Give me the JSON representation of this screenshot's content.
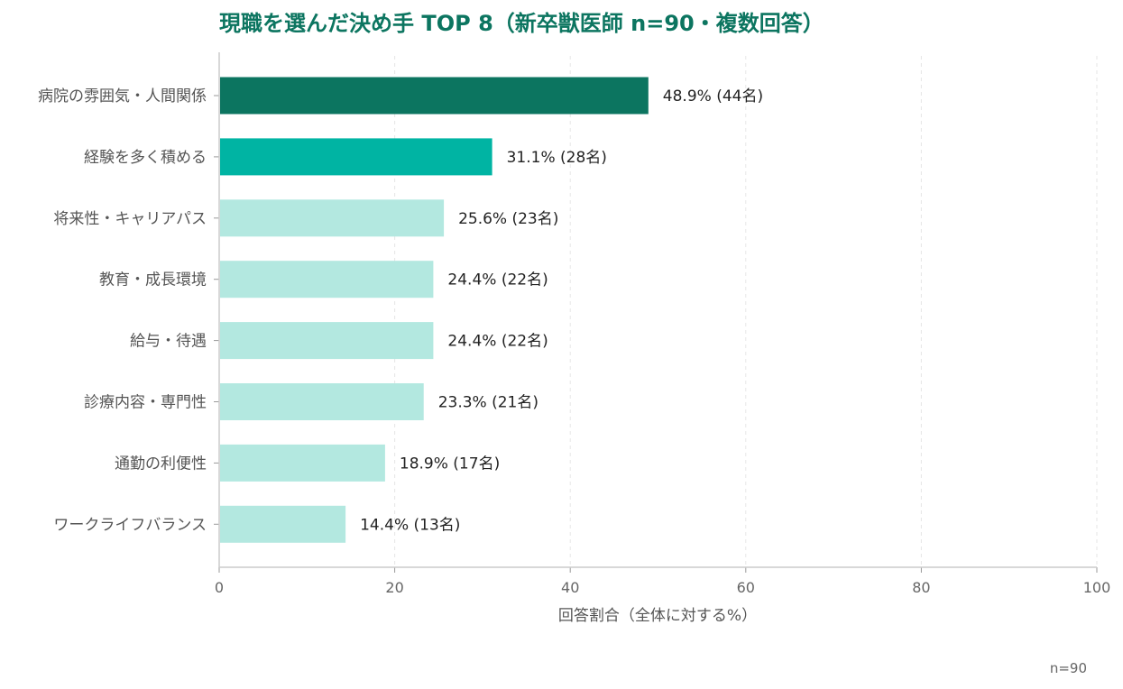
{
  "chart_data": {
    "type": "bar",
    "orientation": "horizontal",
    "title": "現職を選んだ決め手 TOP 8（新卒獣医師 n=90・複数回答）",
    "xlabel": "回答割合（全体に対する%）",
    "ylabel": "",
    "xlim": [
      0,
      100
    ],
    "xticks": [
      "0",
      "20",
      "40",
      "60",
      "80",
      "100"
    ],
    "grid": "vertical dashed",
    "categories": [
      "病院の雰囲気・人間関係",
      "経験を多く積める",
      "将来性・キャリアパス",
      "教育・成長環境",
      "給与・待遇",
      "診療内容・専門性",
      "通勤の利便性",
      "ワークライフバランス"
    ],
    "values": [
      48.9,
      31.1,
      25.6,
      24.4,
      24.4,
      23.3,
      18.9,
      14.4
    ],
    "data_labels": [
      "48.9% (44名)",
      "31.1% (28名)",
      "25.6% (23名)",
      "24.4% (22名)",
      "24.4% (22名)",
      "23.3% (21名)",
      "18.9% (17名)",
      "14.4% (13名)"
    ],
    "bar_colors": [
      "#0c7560",
      "#00b4a3",
      "#b3e8e0",
      "#b3e8e0",
      "#b3e8e0",
      "#b3e8e0",
      "#b3e8e0",
      "#b3e8e0"
    ],
    "note": "n=90"
  }
}
